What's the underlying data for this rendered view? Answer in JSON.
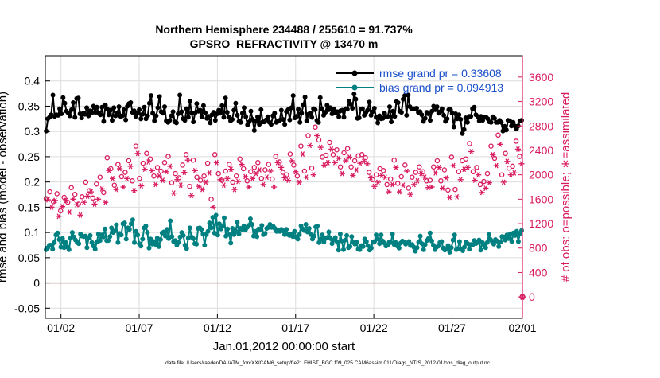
{
  "chart_data": {
    "type": "line",
    "title_line1": "Northern Hemisphere 234488 / 255610 = 91.737%",
    "title_line2": "GPSRO_REFRACTIVITY @ 13470 m",
    "xlabel": "Jan.01,2012 00:00:00 start",
    "ylabel_left": "rmse and bias (model - observation)",
    "ylabel_right": "# of obs: o=possible; ∗=assimilated",
    "footer": "data file: /Users/raeder/DAI/ATM_forcXX/CAM6_setup/f.e21.FHIST_BGC.f09_025.CAM6assim.011/Diags_NTrS_2012-01/obs_diag_output.nc",
    "x_range_days": [
      0.5,
      31.0
    ],
    "ylim_left": [
      -0.07,
      0.45
    ],
    "ylim_right": [
      -350,
      3950
    ],
    "grid": true,
    "legend_placement": "top-right",
    "x_ticks": [
      {
        "day": 1.5,
        "label": "01/02"
      },
      {
        "day": 6.5,
        "label": "01/07"
      },
      {
        "day": 11.5,
        "label": "01/12"
      },
      {
        "day": 16.5,
        "label": "01/17"
      },
      {
        "day": 21.5,
        "label": "01/22"
      },
      {
        "day": 26.5,
        "label": "01/27"
      },
      {
        "day": 31.0,
        "label": "02/01"
      }
    ],
    "y_ticks_left": [
      {
        "v": -0.05,
        "label": "-0.05"
      },
      {
        "v": 0,
        "label": "0"
      },
      {
        "v": 0.05,
        "label": "0.05"
      },
      {
        "v": 0.1,
        "label": "0.1"
      },
      {
        "v": 0.15,
        "label": "0.15"
      },
      {
        "v": 0.2,
        "label": "0.2"
      },
      {
        "v": 0.25,
        "label": "0.25"
      },
      {
        "v": 0.3,
        "label": "0.3"
      },
      {
        "v": 0.35,
        "label": "0.35"
      },
      {
        "v": 0.4,
        "label": "0.4"
      }
    ],
    "y_ticks_right": [
      {
        "v": 0,
        "label": "0"
      },
      {
        "v": 400,
        "label": "400"
      },
      {
        "v": 800,
        "label": "800"
      },
      {
        "v": 1200,
        "label": "1200"
      },
      {
        "v": 1600,
        "label": "1600"
      },
      {
        "v": 2000,
        "label": "2000"
      },
      {
        "v": 2400,
        "label": "2400"
      },
      {
        "v": 2800,
        "label": "2800"
      },
      {
        "v": 3200,
        "label": "3200"
      },
      {
        "v": 3600,
        "label": "3600"
      }
    ],
    "series": [
      {
        "name": "rmse grand pr = 0.33608",
        "axis": "left",
        "color": "#000000",
        "marker": "dot",
        "values": [
          0.301,
          0.325,
          0.328,
          0.333,
          0.372,
          0.33,
          0.333,
          0.332,
          0.345,
          0.335,
          0.367,
          0.356,
          0.34,
          0.337,
          0.331,
          0.343,
          0.357,
          0.328,
          0.365,
          0.366,
          0.335,
          0.327,
          0.336,
          0.334,
          0.347,
          0.331,
          0.341,
          0.337,
          0.35,
          0.338,
          0.348,
          0.336,
          0.333,
          0.348,
          0.32,
          0.352,
          0.345,
          0.333,
          0.342,
          0.322,
          0.347,
          0.331,
          0.336,
          0.349,
          0.33,
          0.331,
          0.343,
          0.323,
          0.35,
          0.355,
          0.357,
          0.338,
          0.341,
          0.33,
          0.336,
          0.343,
          0.325,
          0.334,
          0.348,
          0.325,
          0.331,
          0.356,
          0.371,
          0.336,
          0.321,
          0.331,
          0.347,
          0.369,
          0.339,
          0.336,
          0.349,
          0.321,
          0.318,
          0.322,
          0.331,
          0.339,
          0.319,
          0.317,
          0.335,
          0.372,
          0.339,
          0.325,
          0.322,
          0.345,
          0.328,
          0.36,
          0.336,
          0.319,
          0.337,
          0.355,
          0.34,
          0.342,
          0.329,
          0.351,
          0.337,
          0.326,
          0.33,
          0.317,
          0.333,
          0.338,
          0.322,
          0.335,
          0.342,
          0.336,
          0.351,
          0.328,
          0.366,
          0.338,
          0.328,
          0.321,
          0.324,
          0.342,
          0.356,
          0.332,
          0.32,
          0.318,
          0.336,
          0.347,
          0.329,
          0.313,
          0.319,
          0.34,
          0.324,
          0.302,
          0.32,
          0.329,
          0.314,
          0.343,
          0.319,
          0.319,
          0.323,
          0.329,
          0.318,
          0.314,
          0.331,
          0.336,
          0.318,
          0.32,
          0.322,
          0.342,
          0.324,
          0.314,
          0.339,
          0.343,
          0.323,
          0.347,
          0.371,
          0.327,
          0.33,
          0.344,
          0.318,
          0.336,
          0.353,
          0.368,
          0.321,
          0.334,
          0.336,
          0.328,
          0.345,
          0.343,
          0.322,
          0.318,
          0.367,
          0.345,
          0.332,
          0.338,
          0.352,
          0.343,
          0.347,
          0.335,
          0.344,
          0.337,
          0.339,
          0.329,
          0.341,
          0.342,
          0.328,
          0.345,
          0.344,
          0.36,
          0.354,
          0.346,
          0.374,
          0.364,
          0.326,
          0.327,
          0.344,
          0.345,
          0.332,
          0.338,
          0.342,
          0.358,
          0.332,
          0.339,
          0.346,
          0.328,
          0.317,
          0.331,
          0.325,
          0.326,
          0.336,
          0.329,
          0.33,
          0.349,
          0.319,
          0.34,
          0.33,
          0.359,
          0.357,
          0.34,
          0.338,
          0.364,
          0.371,
          0.332,
          0.372,
          0.349,
          0.345,
          0.345,
          0.345,
          0.346,
          0.338,
          0.339,
          0.333,
          0.32,
          0.326,
          0.338,
          0.335,
          0.322,
          0.34,
          0.35,
          0.343,
          0.349,
          0.336,
          0.339,
          0.345,
          0.332,
          0.32,
          0.325,
          0.343,
          0.343,
          0.336,
          0.309,
          0.335,
          0.325,
          0.333,
          0.324,
          0.296,
          0.304,
          0.327,
          0.318,
          0.33,
          0.33,
          0.345,
          0.348,
          0.333,
          0.33,
          0.321,
          0.33,
          0.322,
          0.328,
          0.328,
          0.325,
          0.319,
          0.318,
          0.329,
          0.326,
          0.318,
          0.318,
          0.322,
          0.318,
          0.301,
          0.31,
          0.303,
          0.322,
          0.321,
          0.311,
          0.318,
          0.311,
          0.305,
          0.311,
          0.321,
          0.322
        ]
      },
      {
        "name": "bias grand pr = 0.094913",
        "axis": "left",
        "color": "#008080",
        "marker": "dot",
        "values": [
          0.066,
          0.07,
          0.075,
          0.075,
          0.067,
          0.08,
          0.095,
          0.099,
          0.086,
          0.071,
          0.088,
          0.07,
          0.08,
          0.071,
          0.066,
          0.089,
          0.1,
          0.091,
          0.085,
          0.08,
          0.078,
          0.097,
          0.093,
          0.092,
          0.093,
          0.07,
          0.089,
          0.094,
          0.08,
          0.073,
          0.067,
          0.081,
          0.097,
          0.084,
          0.095,
          0.091,
          0.107,
          0.084,
          0.084,
          0.092,
          0.109,
          0.1,
          0.103,
          0.115,
          0.08,
          0.098,
          0.095,
          0.117,
          0.119,
          0.087,
          0.109,
          0.106,
          0.117,
          0.125,
          0.08,
          0.102,
          0.095,
          0.078,
          0.073,
          0.087,
          0.109,
          0.113,
          0.1,
          0.069,
          0.087,
          0.077,
          0.082,
          0.076,
          0.089,
          0.072,
          0.086,
          0.099,
          0.101,
          0.093,
          0.106,
          0.088,
          0.123,
          0.092,
          0.082,
          0.084,
          0.075,
          0.08,
          0.091,
          0.1,
          0.094,
          0.075,
          0.068,
          0.089,
          0.109,
          0.091,
          0.088,
          0.078,
          0.077,
          0.108,
          0.109,
          0.106,
          0.097,
          0.075,
          0.096,
          0.102,
          0.119,
          0.109,
          0.13,
          0.099,
          0.134,
          0.095,
          0.117,
          0.107,
          0.112,
          0.129,
          0.093,
          0.107,
          0.096,
          0.079,
          0.108,
          0.096,
          0.102,
          0.12,
          0.097,
          0.108,
          0.106,
          0.113,
          0.105,
          0.11,
          0.114,
          0.127,
          0.116,
          0.093,
          0.102,
          0.092,
          0.107,
          0.106,
          0.114,
          0.096,
          0.098,
          0.108,
          0.11,
          0.116,
          0.11,
          0.112,
          0.108,
          0.102,
          0.104,
          0.102,
          0.106,
          0.103,
          0.096,
          0.106,
          0.096,
          0.094,
          0.097,
          0.092,
          0.102,
          0.091,
          0.087,
          0.096,
          0.113,
          0.107,
          0.104,
          0.116,
          0.101,
          0.108,
          0.096,
          0.087,
          0.093,
          0.111,
          0.113,
          0.08,
          0.086,
          0.095,
          0.081,
          0.088,
          0.09,
          0.101,
          0.088,
          0.078,
          0.085,
          0.09,
          0.082,
          0.065,
          0.097,
          0.083,
          0.066,
          0.085,
          0.094,
          0.07,
          0.072,
          0.092,
          0.08,
          0.077,
          0.081,
          0.067,
          0.066,
          0.074,
          0.072,
          0.087,
          0.082,
          0.074,
          0.065,
          0.069,
          0.081,
          0.082,
          0.095,
          0.087,
          0.078,
          0.095,
          0.083,
          0.079,
          0.073,
          0.075,
          0.081,
          0.08,
          0.097,
          0.076,
          0.08,
          0.073,
          0.069,
          0.079,
          0.083,
          0.081,
          0.077,
          0.079,
          0.082,
          0.074,
          0.076,
          0.071,
          0.063,
          0.07,
          0.081,
          0.093,
          0.078,
          0.066,
          0.076,
          0.084,
          0.088,
          0.099,
          0.083,
          0.075,
          0.066,
          0.071,
          0.073,
          0.08,
          0.082,
          0.069,
          0.065,
          0.068,
          0.074,
          0.061,
          0.07,
          0.085,
          0.095,
          0.066,
          0.068,
          0.082,
          0.067,
          0.064,
          0.071,
          0.081,
          0.078,
          0.067,
          0.076,
          0.075,
          0.084,
          0.078,
          0.08,
          0.085,
          0.065,
          0.08,
          0.076,
          0.07,
          0.08,
          0.096,
          0.086,
          0.082,
          0.077,
          0.086,
          0.083,
          0.072,
          0.081,
          0.092,
          0.091,
          0.085,
          0.095,
          0.088,
          0.097,
          0.082,
          0.099,
          0.094,
          0.102,
          0.082,
          0.098,
          0.104
        ]
      },
      {
        "name": "possible",
        "axis": "right",
        "color": "#d81b60",
        "marker": "circle",
        "values": [
          1610,
          1720,
          1560,
          1690,
          1410,
          1630,
          1550,
          1790,
          1680,
          1520,
          1640,
          1880,
          1740,
          1620,
          1850,
          1960,
          1710,
          2280,
          2100,
          1830,
          2170,
          1970,
          2040,
          2230,
          1900,
          2470,
          1940,
          2190,
          2350,
          2260,
          1980,
          2120,
          2060,
          2200,
          2300,
          1870,
          2020,
          1950,
          2160,
          2330,
          1810,
          2240,
          1960,
          1910,
          1980,
          2190,
          1600,
          2330,
          2020,
          1910,
          2060,
          2170,
          1880,
          1980,
          2260,
          2100,
          1900,
          2050,
          2120,
          2200,
          1940,
          2080,
          2170,
          1930,
          2300,
          2210,
          2040,
          2000,
          2340,
          2160,
          1980,
          2470,
          2060,
          2640,
          2110,
          2780,
          2570,
          2290,
          2320,
          2530,
          2330,
          2410,
          2130,
          2360,
          2430,
          2130,
          2230,
          2310,
          2330,
          2280,
          2040,
          1920,
          2000,
          2100,
          2070,
          1840,
          1930,
          2240,
          1860,
          1970,
          2160,
          1780,
          1960,
          2040,
          2130,
          2050,
          1900,
          1910,
          2130,
          2230,
          1900,
          2080,
          1750,
          2290,
          1760,
          2050,
          2230,
          2260,
          2510,
          2050,
          2120,
          1840,
          1890,
          2020,
          2470,
          2270,
          2650,
          2000,
          2350,
          2110,
          2140,
          2550,
          2300
        ]
      },
      {
        "name": "assimilated",
        "axis": "right",
        "color": "#d81b60",
        "marker": "asterisk",
        "values": [
          1590,
          1470,
          1580,
          1320,
          1480,
          1580,
          1390,
          1600,
          1510,
          1340,
          1550,
          1650,
          1720,
          1520,
          1600,
          1770,
          1550,
          2070,
          1940,
          1760,
          2100,
          1800,
          1940,
          2140,
          1740,
          2350,
          1820,
          2090,
          2210,
          2070,
          1840,
          1980,
          1910,
          2050,
          2140,
          1700,
          1920,
          1830,
          2040,
          2240,
          1660,
          2070,
          1810,
          1760,
          1880,
          2030,
          1470,
          2200,
          1920,
          1830,
          1940,
          2090,
          1760,
          1890,
          2170,
          1970,
          1800,
          1940,
          2020,
          2080,
          1840,
          1960,
          2060,
          1800,
          2200,
          2120,
          1950,
          1910,
          2230,
          2050,
          1880,
          2340,
          1960,
          2480,
          2000,
          2640,
          2450,
          2160,
          2200,
          2420,
          2200,
          2270,
          2020,
          2230,
          2290,
          1990,
          2080,
          2190,
          2220,
          2180,
          1950,
          1810,
          1880,
          1990,
          1960,
          1720,
          1840,
          2120,
          1720,
          1830,
          2060,
          1680,
          1840,
          1900,
          2020,
          1960,
          1790,
          1800,
          2030,
          2120,
          1780,
          1950,
          1630,
          2150,
          1640,
          1920,
          2090,
          2120,
          2380,
          1910,
          2000,
          1710,
          1780,
          1870,
          2330,
          2150,
          2500,
          1880,
          2220,
          2000,
          2030,
          2420,
          2180
        ]
      }
    ]
  }
}
